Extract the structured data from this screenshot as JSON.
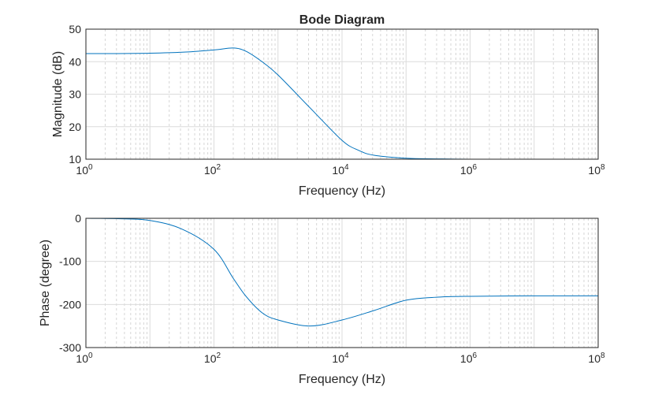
{
  "chart_data": [
    {
      "type": "line",
      "title": "Bode Diagram",
      "xlabel": "Frequency (Hz)",
      "ylabel": "Magnitude (dB)",
      "xscale": "log",
      "xlim": [
        1,
        100000000
      ],
      "ylim": [
        10,
        50
      ],
      "xticks": [
        {
          "exp": "0"
        },
        {
          "exp": "2"
        },
        {
          "exp": "4"
        },
        {
          "exp": "6"
        },
        {
          "exp": "8"
        }
      ],
      "yticks": [
        "10",
        "20",
        "30",
        "40",
        "50"
      ],
      "ytick_values": [
        10,
        20,
        30,
        40,
        50
      ],
      "grid": true,
      "color": "#0072BD",
      "x_log10": [
        0,
        0.5,
        1,
        1.5,
        2,
        2.3,
        2.5,
        2.75,
        3,
        3.5,
        4,
        4.25,
        4.5,
        5,
        5.5,
        6,
        7,
        8
      ],
      "y": [
        42.5,
        42.5,
        42.6,
        42.9,
        43.6,
        44.2,
        43.2,
        40.0,
        35.9,
        25.8,
        15.8,
        12.8,
        11.2,
        10.3,
        10.1,
        10.0,
        10.0,
        10.0
      ]
    },
    {
      "type": "line",
      "title": "",
      "xlabel": "Frequency (Hz)",
      "ylabel": "Phase (degree)",
      "xscale": "log",
      "xlim": [
        1,
        100000000
      ],
      "ylim": [
        -300,
        0
      ],
      "xticks": [
        {
          "exp": "0"
        },
        {
          "exp": "2"
        },
        {
          "exp": "4"
        },
        {
          "exp": "6"
        },
        {
          "exp": "8"
        }
      ],
      "yticks": [
        "-300",
        "-200",
        "-100",
        "0"
      ],
      "ytick_values": [
        -300,
        -200,
        -100,
        0
      ],
      "grid": true,
      "color": "#0072BD",
      "x_log10": [
        0,
        0.5,
        1,
        1.5,
        2,
        2.3,
        2.5,
        2.75,
        3,
        3.5,
        4,
        4.5,
        5,
        5.5,
        6,
        7,
        8
      ],
      "y": [
        0,
        -1,
        -5,
        -25,
        -72,
        -139,
        -181,
        -219,
        -236,
        -250,
        -236,
        -214,
        -190,
        -183,
        -181,
        -180,
        -180
      ]
    }
  ]
}
